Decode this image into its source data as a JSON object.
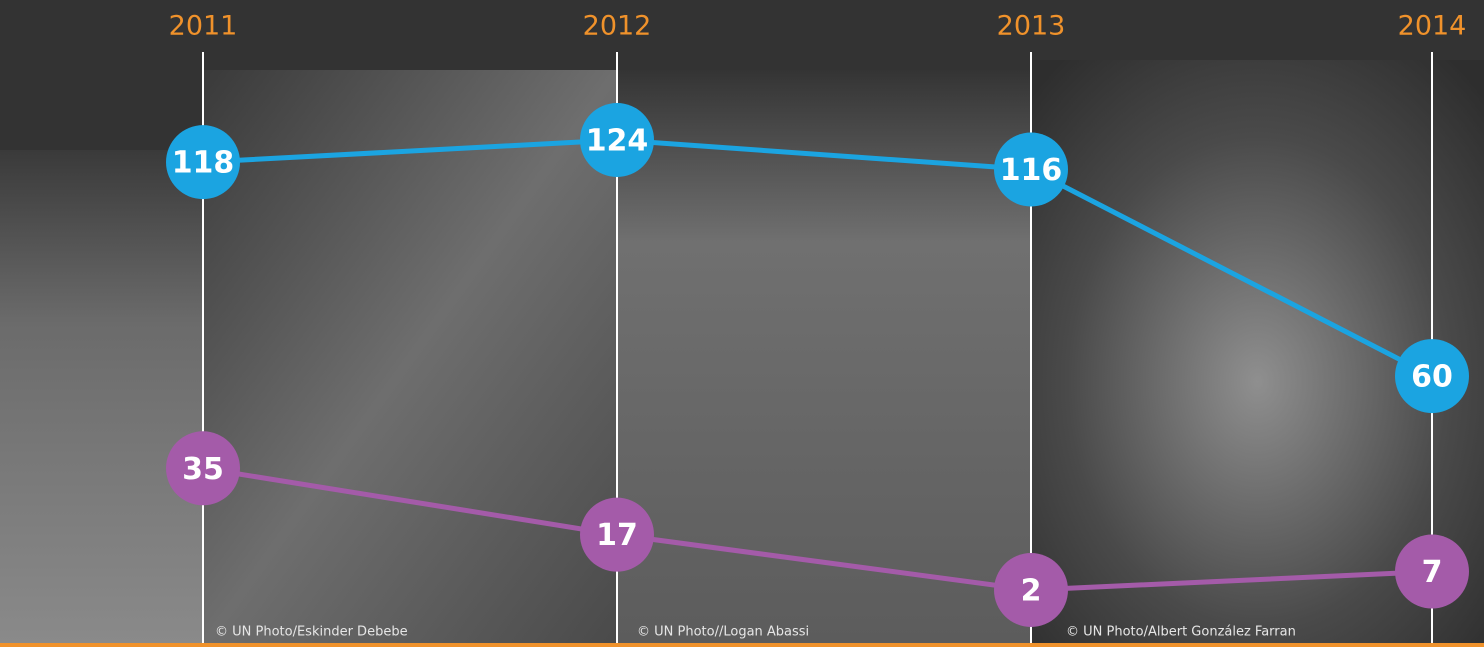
{
  "chart_data": {
    "type": "line",
    "categories": [
      "2011",
      "2012",
      "2013",
      "2014"
    ],
    "series": [
      {
        "color": "#1ba4e1",
        "values": [
          118,
          124,
          116,
          60
        ]
      },
      {
        "color": "#a45ba9",
        "values": [
          35,
          17,
          2,
          7
        ]
      }
    ],
    "photo_credits": [
      "© UN Photo/Eskinder Debebe",
      "© UN Photo//Logan Abassi",
      "© UN Photo/Albert González Farran"
    ]
  }
}
